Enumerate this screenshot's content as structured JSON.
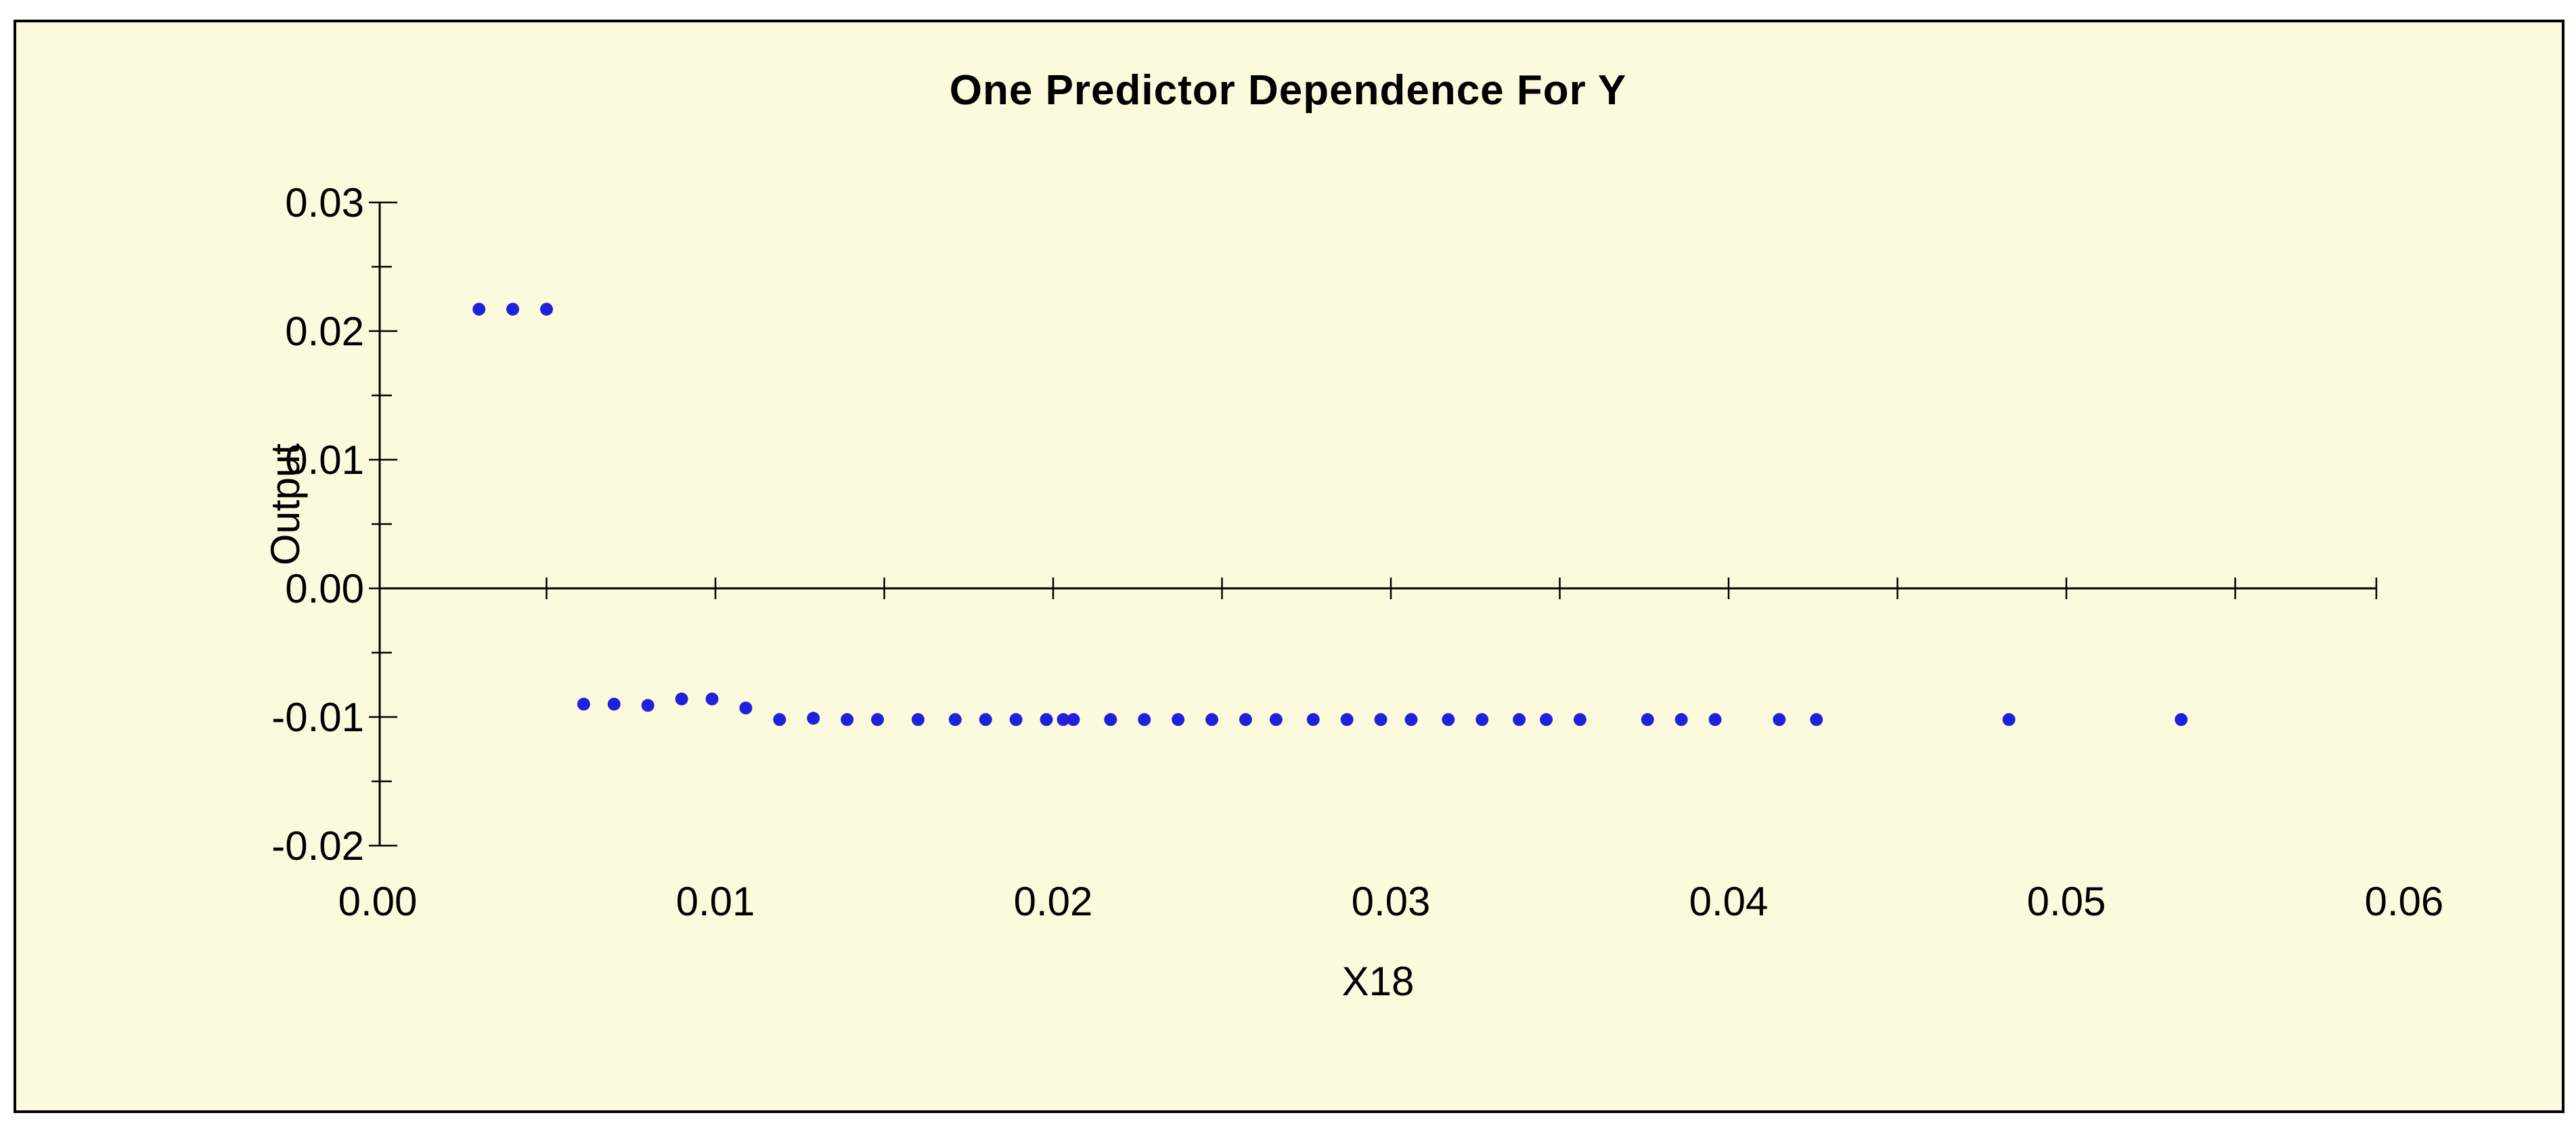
{
  "window": {
    "background_color": "#ffffff"
  },
  "chart_data": {
    "type": "scatter",
    "title": "One Predictor Dependence For Y",
    "xlabel": "X18",
    "ylabel": "Output",
    "xlim": [
      0.0,
      0.062
    ],
    "ylim": [
      -0.02,
      0.03
    ],
    "grid": false,
    "legend": "none",
    "plot_background_color": "#FBFADC",
    "marker_color": "#2121DC",
    "axis_color": "#000000",
    "x_tick_values": [
      0.0,
      0.01,
      0.02,
      0.03,
      0.04,
      0.05,
      0.06
    ],
    "x_tick_labels": [
      "0.00",
      "0.01",
      "0.02",
      "0.03",
      "0.04",
      "0.05",
      "0.06"
    ],
    "x_minor_tick_step": 0.005,
    "y_tick_values": [
      0.03,
      0.02,
      0.01,
      0.0,
      -0.01,
      -0.02
    ],
    "y_tick_labels": [
      "0.03",
      "0.02",
      "0.01",
      "0.00",
      "-0.01",
      "-0.02"
    ],
    "y_minor_tick_step": 0.005,
    "points": [
      [
        0.003,
        0.0217
      ],
      [
        0.004,
        0.0217
      ],
      [
        0.005,
        0.0217
      ],
      [
        0.0061,
        -0.009
      ],
      [
        0.007,
        -0.009
      ],
      [
        0.008,
        -0.0091
      ],
      [
        0.009,
        -0.0086
      ],
      [
        0.0099,
        -0.0086
      ],
      [
        0.0109,
        -0.0093
      ],
      [
        0.0119,
        -0.0102
      ],
      [
        0.0129,
        -0.0101
      ],
      [
        0.0139,
        -0.0102
      ],
      [
        0.0148,
        -0.0102
      ],
      [
        0.016,
        -0.0102
      ],
      [
        0.0171,
        -0.0102
      ],
      [
        0.018,
        -0.0102
      ],
      [
        0.0189,
        -0.0102
      ],
      [
        0.0198,
        -0.0102
      ],
      [
        0.0203,
        -0.0102
      ],
      [
        0.0206,
        -0.0102
      ],
      [
        0.0217,
        -0.0102
      ],
      [
        0.0227,
        -0.0102
      ],
      [
        0.0237,
        -0.0102
      ],
      [
        0.0247,
        -0.0102
      ],
      [
        0.0257,
        -0.0102
      ],
      [
        0.0266,
        -0.0102
      ],
      [
        0.0277,
        -0.0102
      ],
      [
        0.0287,
        -0.0102
      ],
      [
        0.0297,
        -0.0102
      ],
      [
        0.0306,
        -0.0102
      ],
      [
        0.0317,
        -0.0102
      ],
      [
        0.0327,
        -0.0102
      ],
      [
        0.0338,
        -0.0102
      ],
      [
        0.0346,
        -0.0102
      ],
      [
        0.0356,
        -0.0102
      ],
      [
        0.0376,
        -0.0102
      ],
      [
        0.0386,
        -0.0102
      ],
      [
        0.0396,
        -0.0102
      ],
      [
        0.0415,
        -0.0102
      ],
      [
        0.0426,
        -0.0102
      ],
      [
        0.0483,
        -0.0102
      ],
      [
        0.0534,
        -0.0102
      ]
    ]
  }
}
